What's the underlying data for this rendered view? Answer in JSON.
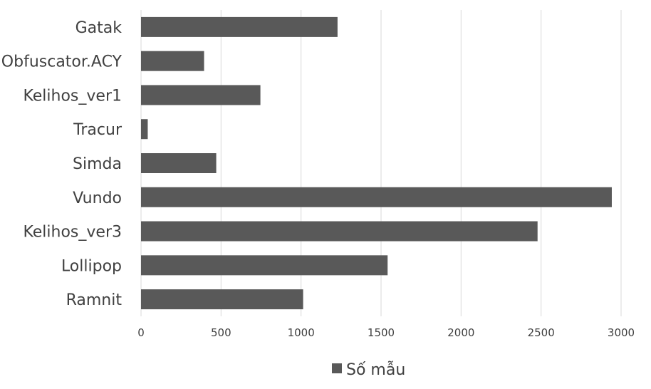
{
  "chart_data": {
    "type": "bar",
    "orientation": "horizontal",
    "categories": [
      "Gatak",
      "Obfuscator.ACY",
      "Kelihos_ver1",
      "Tracur",
      "Simda",
      "Vundo",
      "Kelihos_ver3",
      "Lollipop",
      "Ramnit"
    ],
    "series": [
      {
        "name": "Số mẫu",
        "values": [
          1228,
          394,
          746,
          42,
          470,
          2942,
          2478,
          1541,
          1013
        ]
      }
    ],
    "xlim": [
      0,
      3000
    ],
    "xticks": [
      0,
      500,
      1000,
      1500,
      2000,
      2500,
      3000
    ],
    "grid": "vertical",
    "legend_position": "bottom",
    "colors": {
      "bar": "#595959",
      "grid": "#d9d9d9",
      "text": "#404040"
    }
  }
}
